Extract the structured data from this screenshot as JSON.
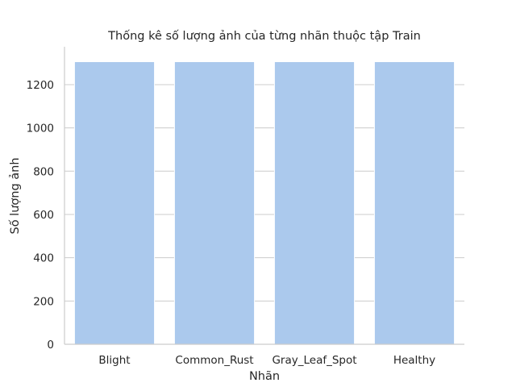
{
  "chart_data": {
    "type": "bar",
    "title": "Thống kê số lượng ảnh của từng nhãn thuộc tập Train",
    "xlabel": "Nhãn",
    "ylabel": "Số lượng ảnh",
    "categories": [
      "Blight",
      "Common_Rust",
      "Gray_Leaf_Spot",
      "Healthy"
    ],
    "values": [
      1306,
      1306,
      1306,
      1306
    ],
    "ylim": [
      0,
      1375
    ],
    "yticks": [
      0,
      200,
      400,
      600,
      800,
      1000,
      1200
    ],
    "grid": true,
    "bar_color": "#abc9ed"
  }
}
